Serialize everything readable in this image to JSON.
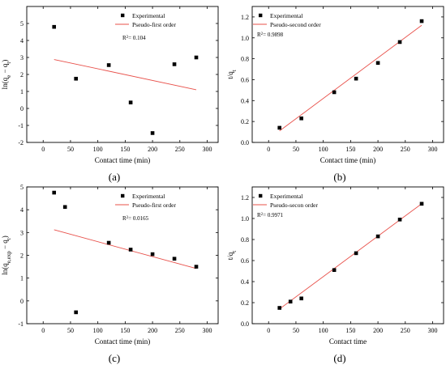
{
  "chart_data": [
    {
      "panel": "a",
      "type": "scatter",
      "caption": "(a)",
      "xlabel": "Contact time (min)",
      "ylabel": "ln(qe − qt)",
      "xlim": [
        -30,
        320
      ],
      "ylim": [
        -2,
        6
      ],
      "xticks": [
        0,
        50,
        100,
        150,
        200,
        250,
        300
      ],
      "yticks": [
        -2,
        -1,
        0,
        1,
        2,
        3,
        4,
        5
      ],
      "legend": {
        "placement": "top-right",
        "marker_label": "Experimental",
        "line_label": "Pseudo-first order"
      },
      "annotation": "R² = 0.104",
      "series": [
        {
          "name": "Experimental",
          "kind": "points",
          "x": [
            20,
            60,
            120,
            160,
            200,
            240,
            280
          ],
          "y": [
            4.8,
            1.75,
            2.55,
            0.35,
            -1.45,
            2.6,
            3.0
          ]
        },
        {
          "name": "Pseudo-first order",
          "kind": "line",
          "x": [
            20,
            280
          ],
          "y": [
            2.88,
            1.1
          ]
        }
      ]
    },
    {
      "panel": "b",
      "type": "scatter",
      "caption": "(b)",
      "xlabel": "Contact time (min)",
      "ylabel": "t/qt",
      "xlim": [
        -30,
        320
      ],
      "ylim": [
        0.0,
        1.3
      ],
      "xticks": [
        0,
        50,
        100,
        150,
        200,
        250,
        300
      ],
      "yticks": [
        0.0,
        0.2,
        0.4,
        0.6,
        0.8,
        1.0,
        1.2
      ],
      "legend": {
        "placement": "top-left",
        "marker_label": "Experimental",
        "line_label": "Pseudo-second order"
      },
      "annotation": "R² = 0.9898",
      "series": [
        {
          "name": "Experimental",
          "kind": "points",
          "x": [
            20,
            60,
            120,
            160,
            200,
            240,
            280
          ],
          "y": [
            0.14,
            0.23,
            0.48,
            0.61,
            0.76,
            0.96,
            1.16
          ]
        },
        {
          "name": "Pseudo-second order",
          "kind": "line",
          "x": [
            20,
            280
          ],
          "y": [
            0.11,
            1.12
          ]
        }
      ]
    },
    {
      "panel": "c",
      "type": "scatter",
      "caption": "(c)",
      "xlabel": "Contact time (min)",
      "ylabel": "ln(qe,exp − qt)",
      "xlim": [
        -30,
        320
      ],
      "ylim": [
        -1,
        5
      ],
      "xticks": [
        0,
        50,
        100,
        150,
        200,
        250,
        300
      ],
      "yticks": [
        -1,
        0,
        1,
        2,
        3,
        4,
        5
      ],
      "legend": {
        "placement": "top-right",
        "marker_label": "Experimental",
        "line_label": "Pseudo-first order"
      },
      "annotation": "R² = 0.0165",
      "series": [
        {
          "name": "Experimental",
          "kind": "points",
          "x": [
            20,
            40,
            60,
            120,
            160,
            200,
            240,
            280
          ],
          "y": [
            4.75,
            4.12,
            -0.5,
            2.55,
            2.25,
            2.05,
            1.85,
            1.5
          ]
        },
        {
          "name": "Pseudo-first order",
          "kind": "line",
          "x": [
            20,
            280
          ],
          "y": [
            3.12,
            1.42
          ]
        }
      ]
    },
    {
      "panel": "d",
      "type": "scatter",
      "caption": "(d)",
      "xlabel": "Contact time",
      "ylabel": "t/qt",
      "xlim": [
        -30,
        320
      ],
      "ylim": [
        0.0,
        1.3
      ],
      "xticks": [
        0,
        50,
        100,
        150,
        200,
        250,
        300
      ],
      "yticks": [
        0.0,
        0.2,
        0.4,
        0.6,
        0.8,
        1.0,
        1.2
      ],
      "legend": {
        "placement": "top-left",
        "marker_label": "Experimental",
        "line_label": "Pseudo-secon order"
      },
      "annotation": "R² = 0.9971",
      "series": [
        {
          "name": "Experimental",
          "kind": "points",
          "x": [
            20,
            40,
            60,
            120,
            160,
            200,
            240,
            280
          ],
          "y": [
            0.15,
            0.21,
            0.24,
            0.51,
            0.67,
            0.83,
            0.99,
            1.14
          ]
        },
        {
          "name": "Pseudo-secon order",
          "kind": "line",
          "x": [
            20,
            280
          ],
          "y": [
            0.14,
            1.14
          ]
        }
      ]
    }
  ]
}
